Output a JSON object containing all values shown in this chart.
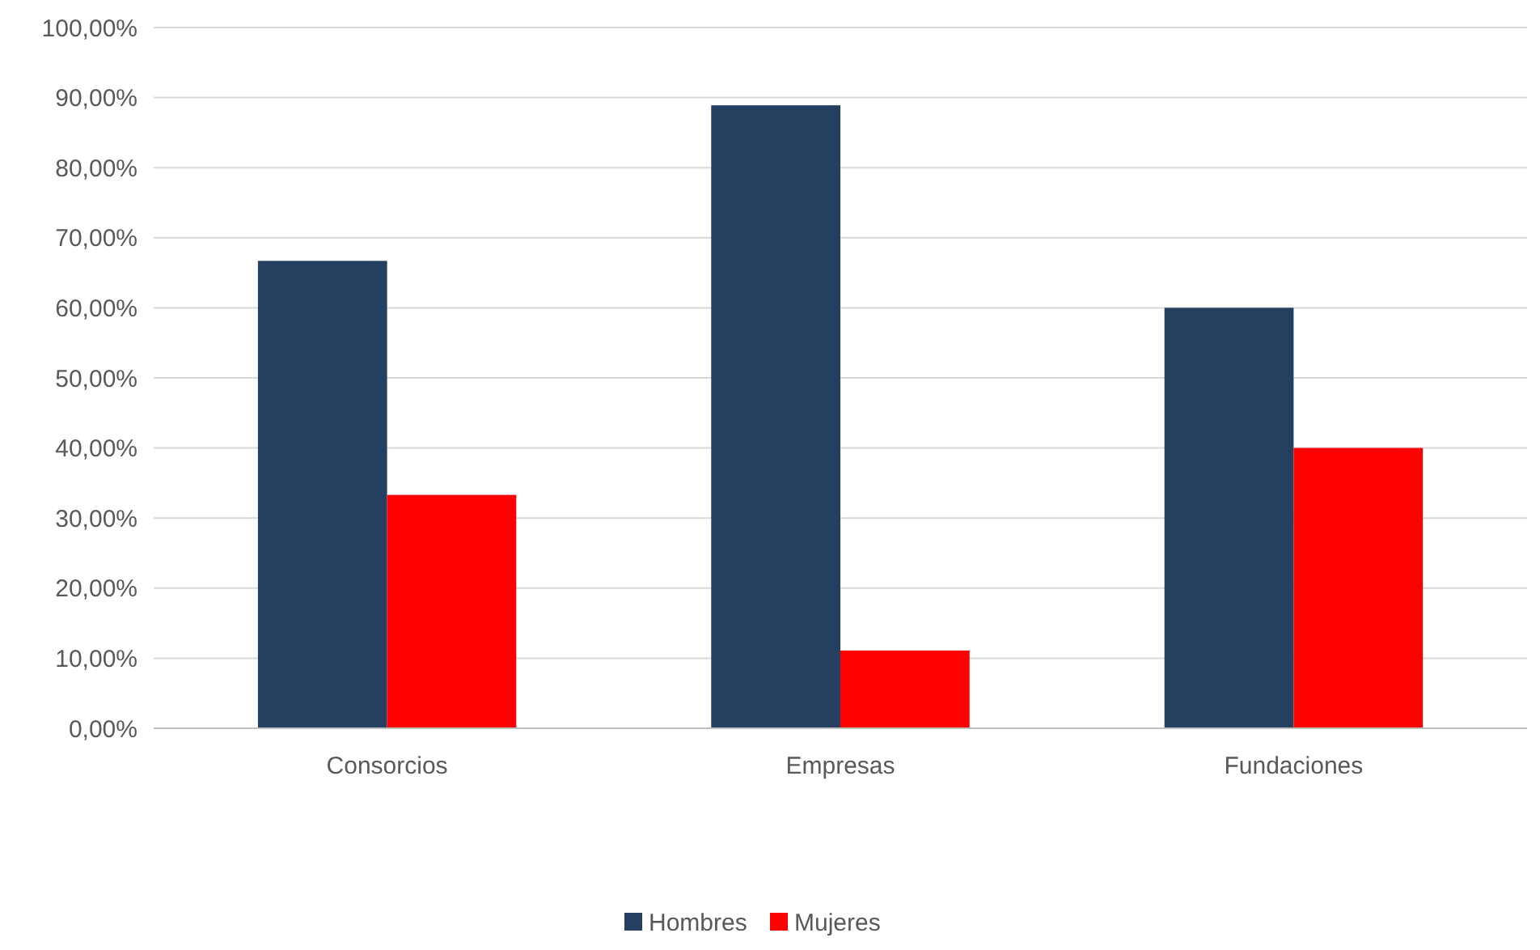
{
  "chart_data": {
    "type": "bar",
    "categories": [
      "Consorcios",
      "Empresas",
      "Fundaciones"
    ],
    "series": [
      {
        "name": "Hombres",
        "color": "#243f60",
        "values": [
          66.7,
          88.9,
          60
        ]
      },
      {
        "name": "Mujeres",
        "color": "#ff0000",
        "values": [
          33.3,
          11.1,
          40
        ]
      }
    ],
    "ylim": [
      0,
      100
    ],
    "yticks": [
      {
        "value": 0,
        "label": "0,00%"
      },
      {
        "value": 10,
        "label": "10,00%"
      },
      {
        "value": 20,
        "label": "20,00%"
      },
      {
        "value": 30,
        "label": "30,00%"
      },
      {
        "value": 40,
        "label": "40,00%"
      },
      {
        "value": 50,
        "label": "50,00%"
      },
      {
        "value": 60,
        "label": "60,00%"
      },
      {
        "value": 70,
        "label": "70,00%"
      },
      {
        "value": 80,
        "label": "80,00%"
      },
      {
        "value": 90,
        "label": "90,00%"
      },
      {
        "value": 100,
        "label": "100,00%"
      }
    ],
    "grid": "y",
    "legend": "bottom"
  }
}
